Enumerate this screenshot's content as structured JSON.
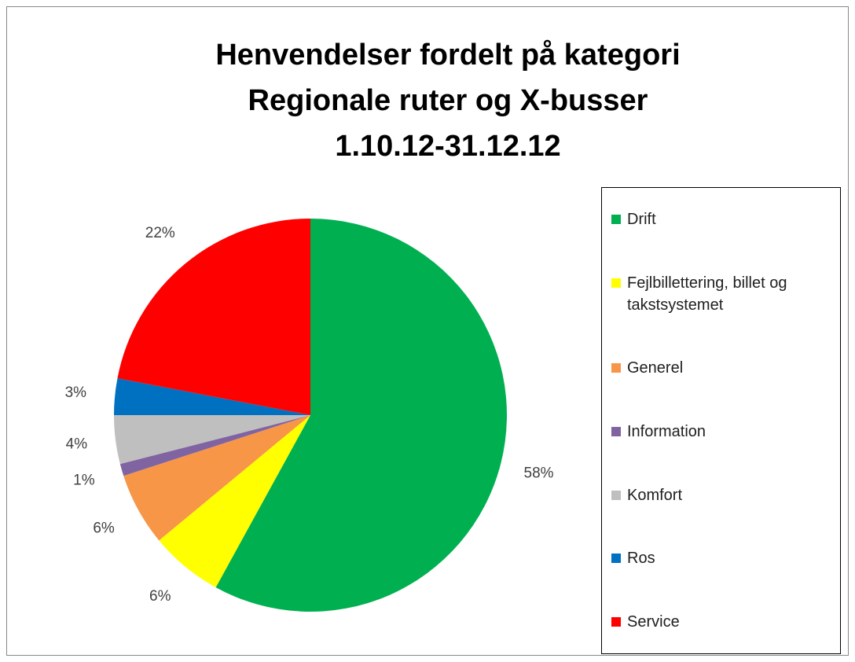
{
  "chart_data": {
    "type": "pie",
    "title": [
      "Henvendelser fordelt på kategori",
      "Regionale ruter og X-busser",
      "1.10.12-31.12.12"
    ],
    "categories": [
      "Drift",
      "Fejlbillettering, billet og takstsystemet",
      "Generel",
      "Information",
      "Komfort",
      "Ros",
      "Service"
    ],
    "values": [
      58,
      6,
      6,
      1,
      4,
      3,
      22
    ],
    "value_labels": [
      "58%",
      "6%",
      "6%",
      "1%",
      "4%",
      "3%",
      "22%"
    ],
    "colors": [
      "#00b050",
      "#ffff00",
      "#f79646",
      "#8064a2",
      "#bfbfbf",
      "#0070c0",
      "#ff0000"
    ],
    "legend": "right"
  }
}
